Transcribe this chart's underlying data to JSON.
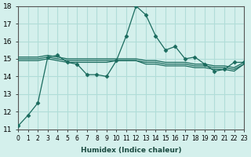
{
  "xlabel": "Humidex (Indice chaleur)",
  "background_color": "#d4f0ec",
  "grid_color": "#b0ddd8",
  "line_color": "#1a6b5e",
  "xlim": [
    0,
    23
  ],
  "ylim": [
    11,
    18
  ],
  "yticks": [
    11,
    12,
    13,
    14,
    15,
    16,
    17,
    18
  ],
  "xtick_labels": [
    "0",
    "1",
    "2",
    "3",
    "4",
    "5",
    "6",
    "7",
    "8",
    "9",
    "10",
    "11",
    "12",
    "13",
    "14",
    "15",
    "16",
    "17",
    "18",
    "19",
    "20",
    "21",
    "22",
    "23"
  ],
  "series1": {
    "x": [
      0,
      1,
      2,
      3,
      4,
      5,
      6,
      7,
      8,
      9,
      10,
      11,
      12,
      13,
      14,
      15,
      16,
      17,
      18,
      19,
      20,
      21,
      22,
      23
    ],
    "y": [
      11.2,
      11.8,
      12.5,
      15.1,
      15.2,
      14.8,
      14.7,
      14.1,
      14.1,
      14.0,
      14.9,
      16.3,
      18.0,
      17.5,
      16.3,
      15.5,
      15.7,
      15.0,
      15.1,
      14.7,
      14.3,
      14.4,
      14.8,
      14.8
    ]
  },
  "series2": {
    "x": [
      0,
      2,
      3,
      4,
      5,
      6,
      7,
      8,
      9,
      10,
      11,
      12,
      13,
      14,
      15,
      16,
      17,
      18,
      19,
      20,
      21,
      22,
      23
    ],
    "y": [
      15.1,
      15.1,
      15.2,
      15.1,
      15.0,
      15.0,
      15.0,
      15.0,
      15.0,
      15.0,
      15.0,
      15.0,
      14.9,
      14.9,
      14.8,
      14.8,
      14.8,
      14.7,
      14.7,
      14.6,
      14.6,
      14.5,
      14.8
    ]
  },
  "series3": {
    "x": [
      0,
      2,
      3,
      4,
      5,
      6,
      7,
      8,
      9,
      10,
      11,
      12,
      13,
      14,
      15,
      16,
      17,
      18,
      19,
      20,
      21,
      22,
      23
    ],
    "y": [
      15.0,
      15.0,
      15.1,
      15.0,
      14.9,
      14.9,
      14.9,
      14.9,
      14.9,
      14.9,
      14.9,
      14.9,
      14.8,
      14.8,
      14.7,
      14.7,
      14.7,
      14.6,
      14.6,
      14.5,
      14.5,
      14.4,
      14.7
    ]
  },
  "series4": {
    "x": [
      0,
      2,
      3,
      4,
      5,
      6,
      7,
      8,
      9,
      10,
      11,
      12,
      13,
      14,
      15,
      16,
      17,
      18,
      19,
      20,
      21,
      22,
      23
    ],
    "y": [
      14.9,
      14.9,
      15.0,
      14.9,
      14.8,
      14.8,
      14.8,
      14.8,
      14.8,
      14.9,
      14.9,
      14.9,
      14.7,
      14.7,
      14.6,
      14.6,
      14.6,
      14.5,
      14.5,
      14.4,
      14.4,
      14.3,
      14.7
    ]
  }
}
